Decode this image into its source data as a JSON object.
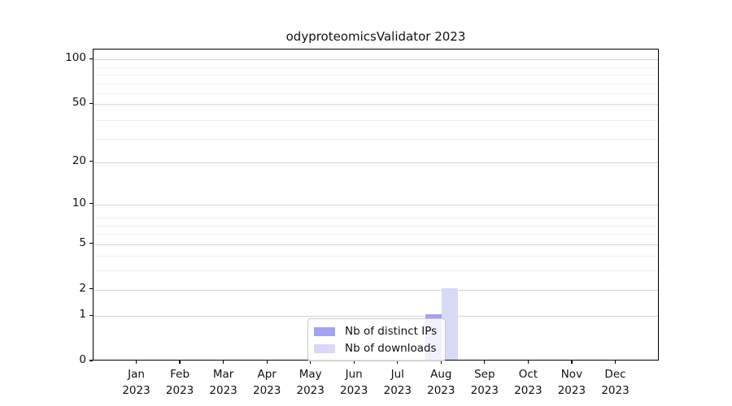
{
  "title": "odyproteomicsValidator 2023",
  "chart_data": {
    "type": "bar",
    "title": "odyproteomicsValidator 2023",
    "categories": [
      "Jan 2023",
      "Feb 2023",
      "Mar 2023",
      "Apr 2023",
      "May 2023",
      "Jun 2023",
      "Jul 2023",
      "Aug 2023",
      "Sep 2023",
      "Oct 2023",
      "Nov 2023",
      "Dec 2023"
    ],
    "series": [
      {
        "name": "Nb of distinct IPs",
        "color": "#a3a3ef",
        "values": [
          0,
          0,
          0,
          0,
          0,
          0,
          0,
          1,
          0,
          0,
          0,
          0
        ]
      },
      {
        "name": "Nb of downloads",
        "color": "#d9d9f6",
        "values": [
          0,
          0,
          0,
          0,
          0,
          0,
          0,
          2,
          0,
          0,
          0,
          0
        ]
      }
    ],
    "xlabel": "",
    "ylabel": "",
    "yticks": [
      0,
      1,
      2,
      5,
      10,
      20,
      50,
      100
    ],
    "minor_yticks": [
      1,
      2,
      3,
      4,
      5,
      6,
      7,
      8,
      19,
      29,
      39,
      49,
      59,
      69,
      79,
      89
    ],
    "scale": "log10(1+v)",
    "ylim": [
      0,
      115
    ],
    "grid": true,
    "legend_position": "lower center",
    "colors": {
      "major_grid": "#d4d4d4",
      "minor_grid": "#efefef",
      "spine": "#000000",
      "background": "#ffffff"
    }
  }
}
